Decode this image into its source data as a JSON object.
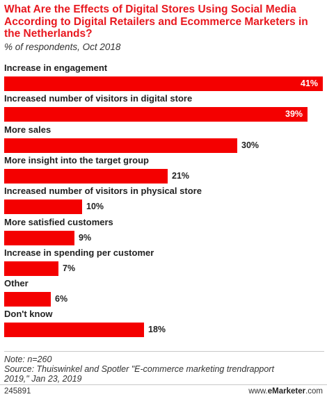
{
  "header": {
    "title": "What Are the Effects of Digital Stores Using Social Media According to Digital Retailers and Ecommerce Marketers in the Netherlands?",
    "subtitle": "% of respondents, Oct 2018"
  },
  "chart_data": {
    "type": "bar",
    "orientation": "horizontal",
    "title": "What Are the Effects of Digital Stores Using Social Media According to Digital Retailers and Ecommerce Marketers in the Netherlands?",
    "subtitle": "% of respondents, Oct 2018",
    "categories": [
      "Increase in engagement",
      "Increased number of visitors in digital store",
      "More sales",
      "More insight into the target group",
      "Increased number of visitors in physical store",
      "More satisfied customers",
      "Increase in spending per customer",
      "Other",
      "Don't know"
    ],
    "values": [
      41,
      39,
      30,
      21,
      10,
      9,
      7,
      6,
      18
    ],
    "value_labels": [
      "41%",
      "39%",
      "30%",
      "21%",
      "10%",
      "9%",
      "7%",
      "6%",
      "18%"
    ],
    "xlim": [
      0,
      41
    ],
    "bar_color": "#f40000",
    "grid": false
  },
  "footer": {
    "note_line1": "Note: n=260",
    "note_line2": "Source: Thuiswinkel and Spotler \"E-commerce marketing trendrapport",
    "note_line3": "2019,\" Jan 23, 2019",
    "chart_id": "245891",
    "brand_prefix": "www.",
    "brand_name": "eMarketer",
    "brand_suffix": ".com"
  }
}
